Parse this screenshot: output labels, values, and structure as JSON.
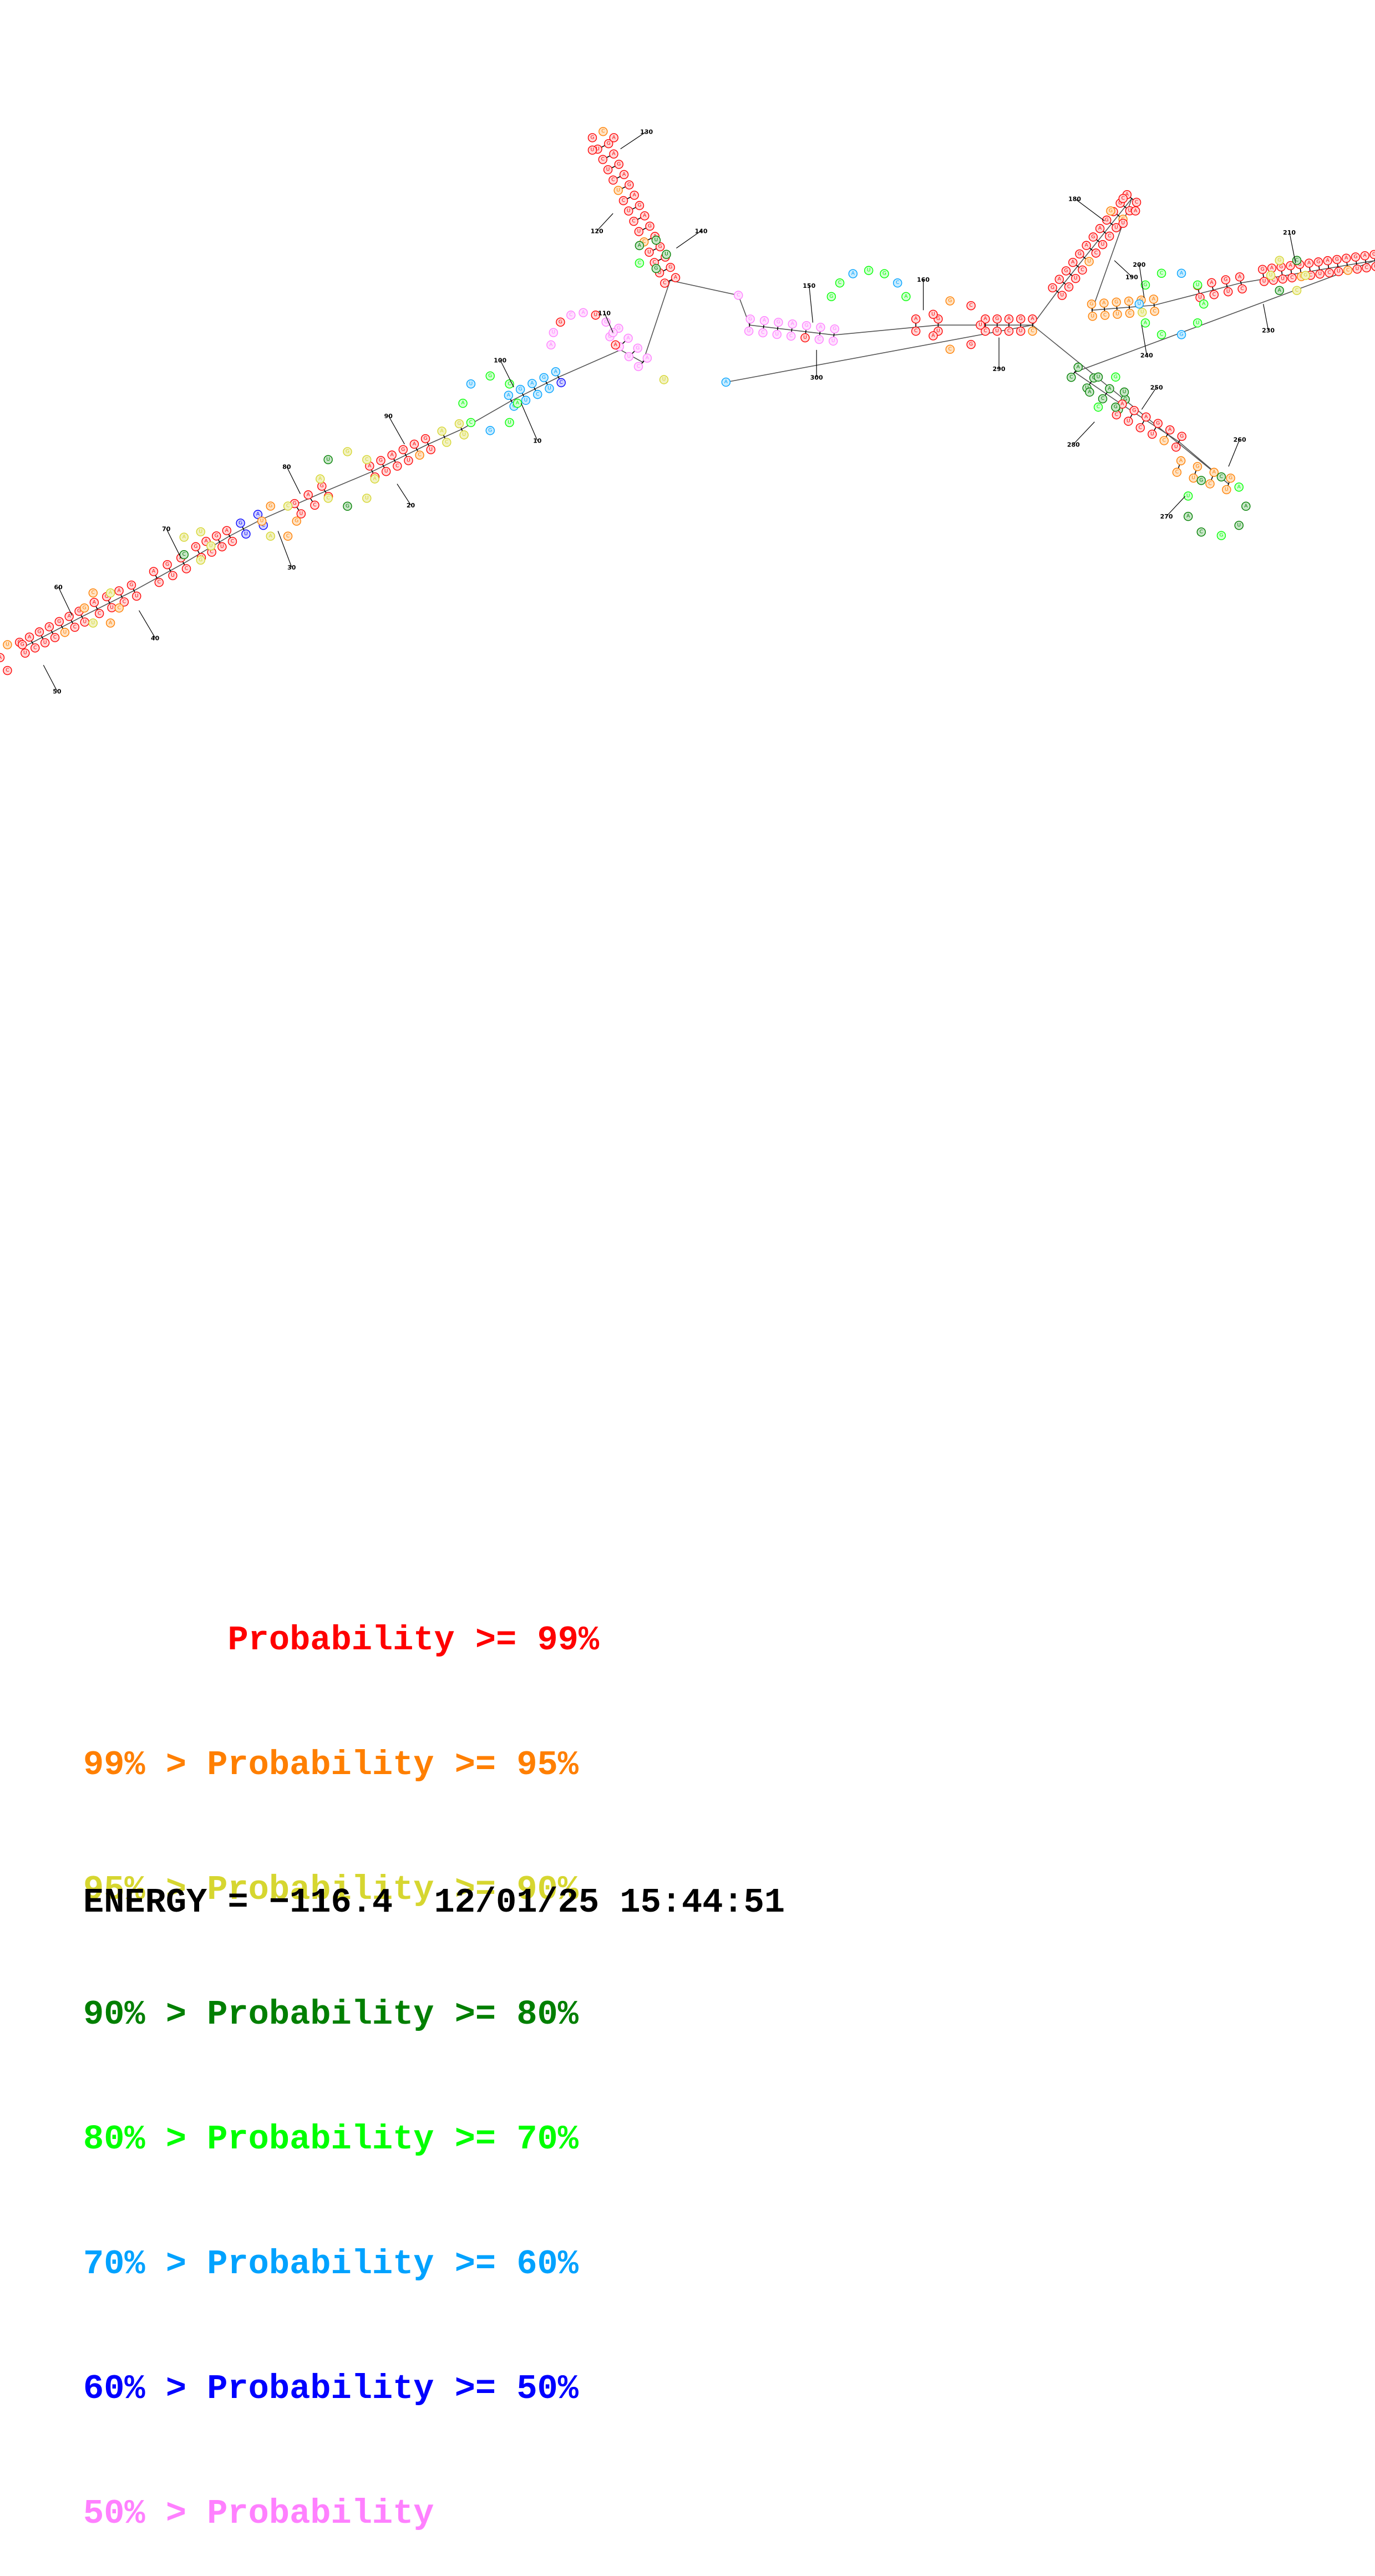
{
  "diagram": {
    "type": "RNA secondary structure",
    "base_colors": [
      "#ff0000",
      "#ff7f00",
      "#d6d630",
      "#007f00",
      "#00ff00",
      "#00a2ff",
      "#0000ff",
      "#ff80ff"
    ],
    "position_labels": [
      "10",
      "20",
      "30",
      "40",
      "50",
      "60",
      "70",
      "80",
      "90",
      "100",
      "110",
      "120",
      "130",
      "140",
      "150",
      "160",
      "180",
      "190",
      "200",
      "210",
      "230",
      "240",
      "250",
      "260",
      "270",
      "280",
      "290",
      "300"
    ]
  },
  "legend": [
    {
      "prefix": "       ",
      "label": "Probability >= 99%",
      "color": "#ff0000"
    },
    {
      "prefix": "99% > ",
      "label": "Probability >= 95%",
      "color": "#ff7f00"
    },
    {
      "prefix": "95% > ",
      "label": "Probability >= 90%",
      "color": "#d6d630"
    },
    {
      "prefix": "90% > ",
      "label": "Probability >= 80%",
      "color": "#007f00"
    },
    {
      "prefix": "80% > ",
      "label": "Probability >= 70%",
      "color": "#00ff00"
    },
    {
      "prefix": "70% > ",
      "label": "Probability >= 60%",
      "color": "#00a2ff"
    },
    {
      "prefix": "60% > ",
      "label": "Probability >= 50%",
      "color": "#0000ff"
    },
    {
      "prefix": "50% > ",
      "label": "Probability",
      "color": "#ff80ff"
    }
  ],
  "energy": {
    "text": "ENERGY = −116.4",
    "timestamp": "12/01/25 15:44:51"
  }
}
